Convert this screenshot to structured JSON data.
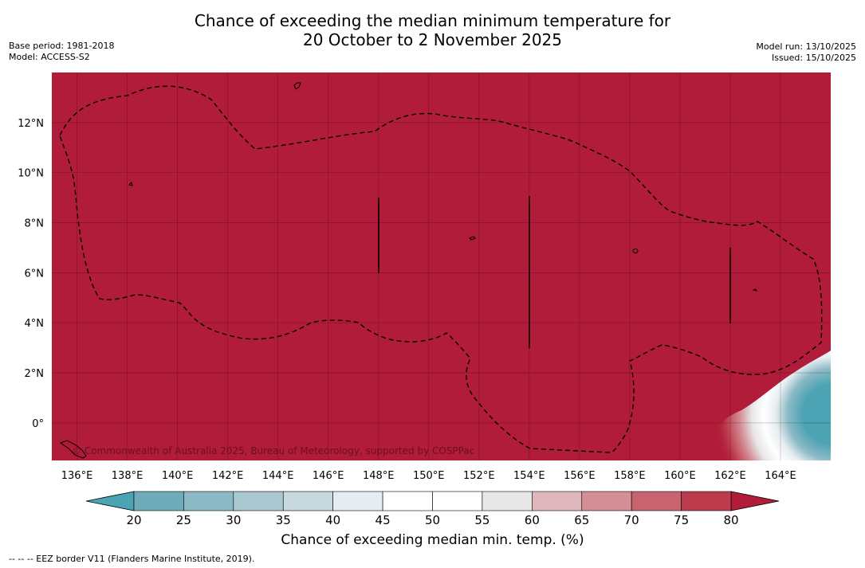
{
  "title": {
    "line1": "Chance of exceeding the median minimum temperature for",
    "line2": "20 October to 2 November 2025"
  },
  "meta_left": {
    "base_period": "Base period: 1981-2018",
    "model": "Model: ACCESS-S2"
  },
  "meta_right": {
    "model_run": "Model run: 13/10/2025",
    "issued": "Issued: 15/10/2025"
  },
  "map": {
    "lon_range": [
      135,
      166
    ],
    "lat_range": [
      -1.5,
      14
    ],
    "lon_ticks": [
      "136°E",
      "138°E",
      "140°E",
      "142°E",
      "144°E",
      "146°E",
      "148°E",
      "150°E",
      "152°E",
      "154°E",
      "156°E",
      "158°E",
      "160°E",
      "162°E",
      "164°E"
    ],
    "lat_ticks": [
      "12°N",
      "10°N",
      "8°N",
      "6°N",
      "4°N",
      "2°N",
      "0°"
    ],
    "background_color": "#b11c3a",
    "copyright": "© Commonwealth of Australia 2025, Bureau of Meteorology, supported by COSPPac"
  },
  "colorbar": {
    "ticks": [
      "20",
      "25",
      "30",
      "35",
      "40",
      "45",
      "50",
      "55",
      "60",
      "65",
      "70",
      "75",
      "80"
    ],
    "colors": [
      "#6fabb9",
      "#8cb9c5",
      "#a9c8cf",
      "#c7d8de",
      "#e6edf0",
      "#ffffff",
      "#ffffff",
      "#e7e7e7",
      "#deb6bb",
      "#d48e95",
      "#c7646f",
      "#bc3b4c"
    ],
    "under_color": "#4ba3b4",
    "over_color": "#b11c3a",
    "label": "Chance of exceeding median min. temp. (%)"
  },
  "footer": "-- -- -- EEZ border V11 (Flanders Marine Institute, 2019)."
}
